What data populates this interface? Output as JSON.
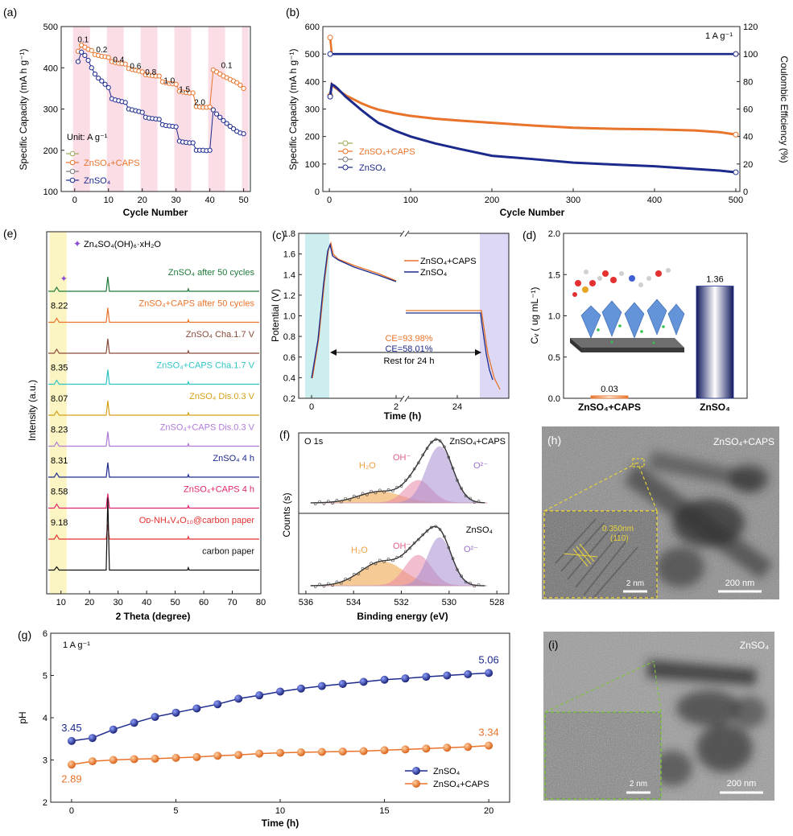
{
  "chart_data": [
    {
      "id": "a",
      "panel_label": "(a)",
      "type": "line",
      "xlabel": "Cycle Number",
      "ylabel": "Specific Capacity (mA h g⁻¹)",
      "xlim": [
        -4,
        52
      ],
      "ylim": [
        100,
        500
      ],
      "xticks": [
        0,
        10,
        20,
        30,
        40,
        50
      ],
      "yticks": [
        100,
        200,
        300,
        400,
        500
      ],
      "unit_note": "Unit: A g⁻¹",
      "bands": [
        [
          -0.5,
          4.5
        ],
        [
          9.5,
          14.5
        ],
        [
          19.5,
          24.5
        ],
        [
          29.5,
          34.5
        ],
        [
          39.5,
          44.5
        ],
        [
          49.5,
          51.5
        ]
      ],
      "band_color": "#fbdde6",
      "rate_labels": [
        {
          "text": "0.1",
          "x": 2.5,
          "y": 462
        },
        {
          "text": "0.2",
          "x": 8,
          "y": 438
        },
        {
          "text": "0.4",
          "x": 13,
          "y": 413
        },
        {
          "text": "0.6",
          "x": 18,
          "y": 398
        },
        {
          "text": "0.8",
          "x": 22.5,
          "y": 383
        },
        {
          "text": "1.0",
          "x": 28,
          "y": 362
        },
        {
          "text": "1.5",
          "x": 32.5,
          "y": 341
        },
        {
          "text": "2.0",
          "x": 37,
          "y": 310
        },
        {
          "text": "0.1",
          "x": 45,
          "y": 400
        }
      ],
      "series": [
        {
          "name": "ZnSO₄+CAPS",
          "color": "#e8732a",
          "marker": "circle",
          "x": [
            1,
            2,
            3,
            4,
            5,
            6,
            7,
            8,
            9,
            10,
            11,
            12,
            13,
            14,
            15,
            16,
            17,
            18,
            19,
            20,
            21,
            22,
            23,
            24,
            25,
            26,
            27,
            28,
            29,
            30,
            31,
            32,
            33,
            34,
            35,
            36,
            37,
            38,
            39,
            40,
            41,
            42,
            43,
            44,
            45,
            46,
            47,
            48,
            49,
            50
          ],
          "values": [
            440,
            455,
            450,
            445,
            442,
            432,
            430,
            428,
            427,
            425,
            415,
            413,
            411,
            410,
            409,
            398,
            396,
            394,
            392,
            390,
            383,
            382,
            381,
            380,
            380,
            366,
            364,
            362,
            361,
            360,
            343,
            341,
            340,
            339,
            339,
            306,
            305,
            304,
            304,
            305,
            395,
            390,
            385,
            380,
            376,
            372,
            368,
            364,
            358,
            350
          ]
        },
        {
          "name": "ZnSO₄",
          "color": "#1c2a8c",
          "marker": "circle",
          "x": [
            1,
            2,
            3,
            4,
            5,
            6,
            7,
            8,
            9,
            10,
            11,
            12,
            13,
            14,
            15,
            16,
            17,
            18,
            19,
            20,
            21,
            22,
            23,
            24,
            25,
            26,
            27,
            28,
            29,
            30,
            31,
            32,
            33,
            34,
            35,
            36,
            37,
            38,
            39,
            40,
            41,
            42,
            43,
            44,
            45,
            46,
            47,
            48,
            49,
            50
          ],
          "values": [
            415,
            438,
            430,
            418,
            400,
            385,
            375,
            368,
            360,
            352,
            325,
            322,
            320,
            318,
            316,
            300,
            298,
            296,
            294,
            292,
            280,
            278,
            277,
            276,
            275,
            262,
            260,
            259,
            258,
            257,
            222,
            220,
            219,
            218,
            218,
            200,
            200,
            200,
            199,
            200,
            298,
            288,
            280,
            272,
            265,
            258,
            252,
            246,
            242,
            240
          ]
        }
      ],
      "legend": [
        {
          "text": "",
          "color": "#9aab58"
        },
        {
          "text": "ZnSO₄+CAPS",
          "color": "#e8732a"
        },
        {
          "text": "",
          "color": "#7a7a7a"
        },
        {
          "text": "ZnSO₄",
          "color": "#1c2a8c"
        }
      ]
    },
    {
      "id": "b",
      "panel_label": "(b)",
      "type": "line",
      "xlabel": "Cycle Number",
      "ylabel": "Specific Capacity (mA h g⁻¹)",
      "y2label": "Coulombic Efficiency (%)",
      "xlim": [
        -8,
        505
      ],
      "ylim": [
        0,
        600
      ],
      "y2lim": [
        0,
        120
      ],
      "xticks": [
        0,
        100,
        200,
        300,
        400,
        500
      ],
      "yticks": [
        0,
        100,
        200,
        300,
        400,
        500,
        600
      ],
      "y2ticks": [
        0,
        20,
        40,
        60,
        80,
        100,
        120
      ],
      "annotation": "1 A g⁻¹",
      "series": [
        {
          "name": "ZnSO₄+CAPS",
          "color": "#e8732a",
          "axis": "left",
          "x": [
            1,
            3,
            6,
            10,
            15,
            20,
            30,
            40,
            50,
            60,
            80,
            100,
            130,
            160,
            200,
            250,
            300,
            350,
            400,
            450,
            480,
            500
          ],
          "values": [
            350,
            390,
            380,
            372,
            360,
            350,
            335,
            320,
            308,
            298,
            285,
            275,
            265,
            258,
            250,
            240,
            232,
            228,
            226,
            222,
            216,
            207
          ]
        },
        {
          "name": "ZnSO₄",
          "color": "#1c2a8c",
          "axis": "left",
          "x": [
            1,
            3,
            6,
            10,
            15,
            20,
            30,
            40,
            50,
            60,
            80,
            100,
            130,
            160,
            200,
            250,
            300,
            350,
            400,
            450,
            480,
            500
          ],
          "values": [
            345,
            390,
            385,
            375,
            360,
            345,
            320,
            295,
            272,
            250,
            222,
            200,
            175,
            155,
            130,
            118,
            105,
            98,
            92,
            82,
            76,
            70
          ]
        },
        {
          "name": "CE ZnSO₄+CAPS",
          "color": "#e8732a",
          "axis": "right",
          "x": [
            1,
            3,
            10,
            100,
            200,
            300,
            400,
            500
          ],
          "values": [
            112,
            100,
            100,
            100,
            100,
            100,
            100,
            100
          ]
        },
        {
          "name": "CE ZnSO₄",
          "color": "#1c2a8c",
          "axis": "right",
          "x": [
            1,
            3,
            10,
            100,
            200,
            300,
            400,
            500
          ],
          "values": [
            100,
            100,
            100,
            100,
            100,
            100,
            100,
            100
          ]
        }
      ],
      "legend": [
        {
          "text": "",
          "color": "#9aab58"
        },
        {
          "text": "ZnSO₄+CAPS",
          "color": "#e8732a"
        },
        {
          "text": "",
          "color": "#7a7a7a"
        },
        {
          "text": "ZnSO₄",
          "color": "#1c2a8c"
        }
      ]
    },
    {
      "id": "e",
      "panel_label": "(e)",
      "type": "line",
      "xlabel": "2 Theta (degree)",
      "ylabel": "Intensity (a.u.)",
      "xlim": [
        5,
        80
      ],
      "xticks": [
        10,
        20,
        30,
        40,
        50,
        60,
        70,
        80
      ],
      "legend_marker": "✦",
      "legend_text": "Zn₄SO₄(OH)₆·xH₂O",
      "highlight_range": [
        6,
        12
      ],
      "highlight_color": "#fbf5c4",
      "traces": [
        {
          "label": "ZnSO₄ after 50 cycles",
          "color": "#1f7a3a",
          "peak_label": "",
          "marker": true
        },
        {
          "label": "ZnSO₄+CAPS after 50 cycles",
          "color": "#e8732a",
          "peak_label": "8.22"
        },
        {
          "label": "ZnSO₄ Cha.1.7 V",
          "color": "#8b4a3a",
          "peak_label": ""
        },
        {
          "label": "ZnSO₄+CAPS Cha.1.7 V",
          "color": "#2ec4c4",
          "peak_label": "8.35"
        },
        {
          "label": "ZnSO₄ Dis.0.3 V",
          "color": "#d4a017",
          "peak_label": "8.07"
        },
        {
          "label": "ZnSO₄+CAPS Dis.0.3 V",
          "color": "#b07ad8",
          "peak_label": "8.23"
        },
        {
          "label": "ZnSO₄ 4 h",
          "color": "#1c2a8c",
          "peak_label": "8.31"
        },
        {
          "label": "ZnSO₄+CAPS 4 h",
          "color": "#e0246e",
          "peak_label": "8.58"
        },
        {
          "label": "Oᴅ-NH₄V₄O₁₀@carbon paper",
          "color": "#e53030",
          "peak_label": "9.18"
        },
        {
          "label": "carbon paper",
          "color": "#111111",
          "peak_label": ""
        }
      ]
    },
    {
      "id": "c",
      "panel_label": "(c)",
      "type": "line",
      "xlabel": "Time (h)",
      "ylabel": "Potential (V)",
      "ylim": [
        0.2,
        1.8
      ],
      "yticks": [
        0.2,
        0.4,
        0.6,
        0.8,
        1.0,
        1.2,
        1.4,
        1.6,
        1.8
      ],
      "xticks": [
        0,
        2,
        24
      ],
      "annotations": [
        "CE=93.98%",
        "CE=58.01%",
        "Rest for 24 h"
      ],
      "series": [
        {
          "name": "ZnSO₄+CAPS",
          "color": "#e8732a"
        },
        {
          "name": "ZnSO₄",
          "color": "#1c2a8c"
        }
      ]
    },
    {
      "id": "d",
      "panel_label": "(d)",
      "type": "bar",
      "ylabel": "Cᵥ ( ug mL⁻¹)",
      "ylim": [
        0,
        2.0
      ],
      "yticks": [
        0.0,
        0.5,
        1.0,
        1.5,
        2.0
      ],
      "categories": [
        "ZnSO₄+CAPS",
        "ZnSO₄"
      ],
      "values": [
        0.03,
        1.36
      ],
      "value_labels": [
        "0.03",
        "1.36"
      ],
      "colors": [
        "#e8732a",
        "#1c2a8c"
      ]
    },
    {
      "id": "f",
      "panel_label": "(f)",
      "type": "line",
      "xlabel": "Binding energy (eV)",
      "ylabel": "Counts (s)",
      "xlim": [
        536.3,
        527.5
      ],
      "xticks": [
        536,
        534,
        532,
        530,
        528
      ],
      "core_level": "O 1s",
      "panels": [
        {
          "title": "ZnSO₄+CAPS",
          "components": [
            "H₂O",
            "OH⁻",
            "O²⁻"
          ]
        },
        {
          "title": "ZnSO₄",
          "components": [
            "H₂O",
            "OH⁻",
            "O²⁻"
          ]
        }
      ],
      "component_colors": [
        "#f0a040",
        "#e88aa8",
        "#a88ed0"
      ]
    },
    {
      "id": "g",
      "panel_label": "(g)",
      "type": "line",
      "xlabel": "Time (h)",
      "ylabel": "pH",
      "xlim": [
        -1,
        21
      ],
      "ylim": [
        2,
        6
      ],
      "xticks": [
        0,
        5,
        10,
        15,
        20
      ],
      "yticks": [
        2,
        3,
        4,
        5,
        6
      ],
      "annotation": "1 A g⁻¹",
      "series": [
        {
          "name": "ZnSO₄",
          "color": "#1c2a8c",
          "x": [
            0,
            1,
            2,
            3,
            4,
            5,
            6,
            7,
            8,
            9,
            10,
            11,
            12,
            13,
            14,
            15,
            16,
            17,
            18,
            19,
            20
          ],
          "values": [
            3.45,
            3.52,
            3.72,
            3.88,
            4.02,
            4.12,
            4.22,
            4.32,
            4.45,
            4.53,
            4.62,
            4.69,
            4.75,
            4.8,
            4.85,
            4.9,
            4.93,
            4.97,
            5.0,
            5.03,
            5.06
          ]
        },
        {
          "name": "ZnSO₄+CAPS",
          "color": "#e8732a",
          "x": [
            0,
            1,
            2,
            3,
            4,
            5,
            6,
            7,
            8,
            9,
            10,
            11,
            12,
            13,
            14,
            15,
            16,
            17,
            18,
            19,
            20
          ],
          "values": [
            2.89,
            2.97,
            3.0,
            3.02,
            3.03,
            3.05,
            3.07,
            3.1,
            3.12,
            3.15,
            3.17,
            3.18,
            3.19,
            3.2,
            3.21,
            3.23,
            3.25,
            3.27,
            3.29,
            3.31,
            3.34
          ]
        }
      ],
      "value_labels": [
        {
          "text": "3.45",
          "series": 0,
          "index": 0,
          "pos": "above"
        },
        {
          "text": "5.06",
          "series": 0,
          "index": 20,
          "pos": "above"
        },
        {
          "text": "2.89",
          "series": 1,
          "index": 0,
          "pos": "below"
        },
        {
          "text": "3.34",
          "series": 1,
          "index": 20,
          "pos": "above"
        }
      ]
    }
  ],
  "panels": {
    "h": {
      "label": "(h)",
      "sample": "ZnSO₄+CAPS",
      "lattice_spacing": "0.350nm",
      "lattice_plane": "(110)",
      "inset_scale": "2 nm",
      "main_scale": "200 nm"
    },
    "i": {
      "label": "(i)",
      "sample": "ZnSO₄",
      "inset_scale": "2 nm",
      "main_scale": "200 nm"
    }
  }
}
